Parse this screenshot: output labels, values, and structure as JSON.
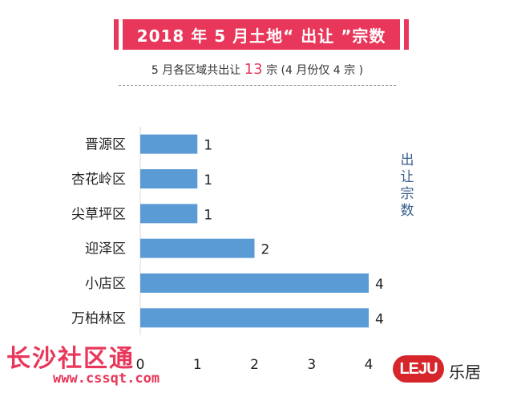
{
  "title": "2018 年 5 月土地“ 出让 ”宗数",
  "subtitle_pre": "5 月各区域共出让 ",
  "subtitle_highlight": "13",
  "subtitle_post": " 宗 (4 月份仅 4 宗 )",
  "side_label": "出让宗数",
  "watermark_cn": "长沙社区通",
  "watermark_url": "www.cssqt.com",
  "brand_logo": "LEJU",
  "brand_name": "乐居",
  "colors": {
    "bar": "#5b9bd5",
    "accent": "#e8375a",
    "brand": "#d6262b"
  },
  "chart_data": {
    "type": "bar",
    "orientation": "horizontal",
    "categories": [
      "晋源区",
      "杏花岭区",
      "尖草坪区",
      "迎泽区",
      "小店区",
      "万柏林区"
    ],
    "values": [
      1,
      1,
      1,
      2,
      4,
      4
    ],
    "xlim": [
      0,
      4
    ],
    "xticks": [
      "0",
      "1",
      "2",
      "3",
      "4"
    ],
    "title": "",
    "xlabel": "",
    "ylabel": "出让宗数",
    "grid": false
  }
}
